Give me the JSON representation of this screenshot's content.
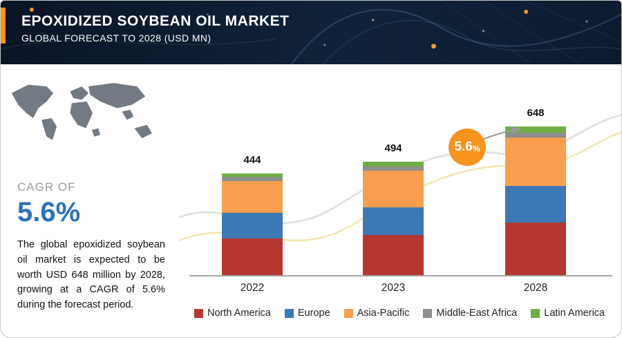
{
  "header": {
    "title": "EPOXIDIZED SOYBEAN OIL MARKET",
    "subtitle": "GLOBAL FORECAST TO 2028 (USD MN)"
  },
  "sidebar": {
    "cagr_label": "CAGR OF",
    "cagr_value": "5.6%",
    "description": "The global epoxidized soybean oil market is expected to be worth USD 648 million by 2028, growing at a CAGR of 5.6% during the forecast period."
  },
  "chart_data": {
    "type": "bar",
    "stacked": true,
    "categories": [
      "2022",
      "2023",
      "2028"
    ],
    "totals": [
      444,
      494,
      648
    ],
    "series": [
      {
        "name": "North America",
        "color": "#b5372f",
        "values": [
          160,
          175,
          230
        ]
      },
      {
        "name": "Europe",
        "color": "#3c78b4",
        "values": [
          110,
          120,
          160
        ]
      },
      {
        "name": "Asia-Pacific",
        "color": "#f99d4e",
        "values": [
          140,
          160,
          210
        ]
      },
      {
        "name": "Middle-East Africa",
        "color": "#8e8e8e",
        "values": [
          17,
          19,
          22
        ]
      },
      {
        "name": "Latin America",
        "color": "#6fae46",
        "values": [
          17,
          20,
          26
        ]
      }
    ],
    "growth_badge": {
      "value": "5.6",
      "suffix": "%"
    },
    "ylim": [
      0,
      700
    ],
    "legend_position": "bottom"
  },
  "colors": {
    "accent_orange": "#f7941d",
    "cagr_blue": "#2a72b8",
    "header_bg": "#0e1c30"
  }
}
